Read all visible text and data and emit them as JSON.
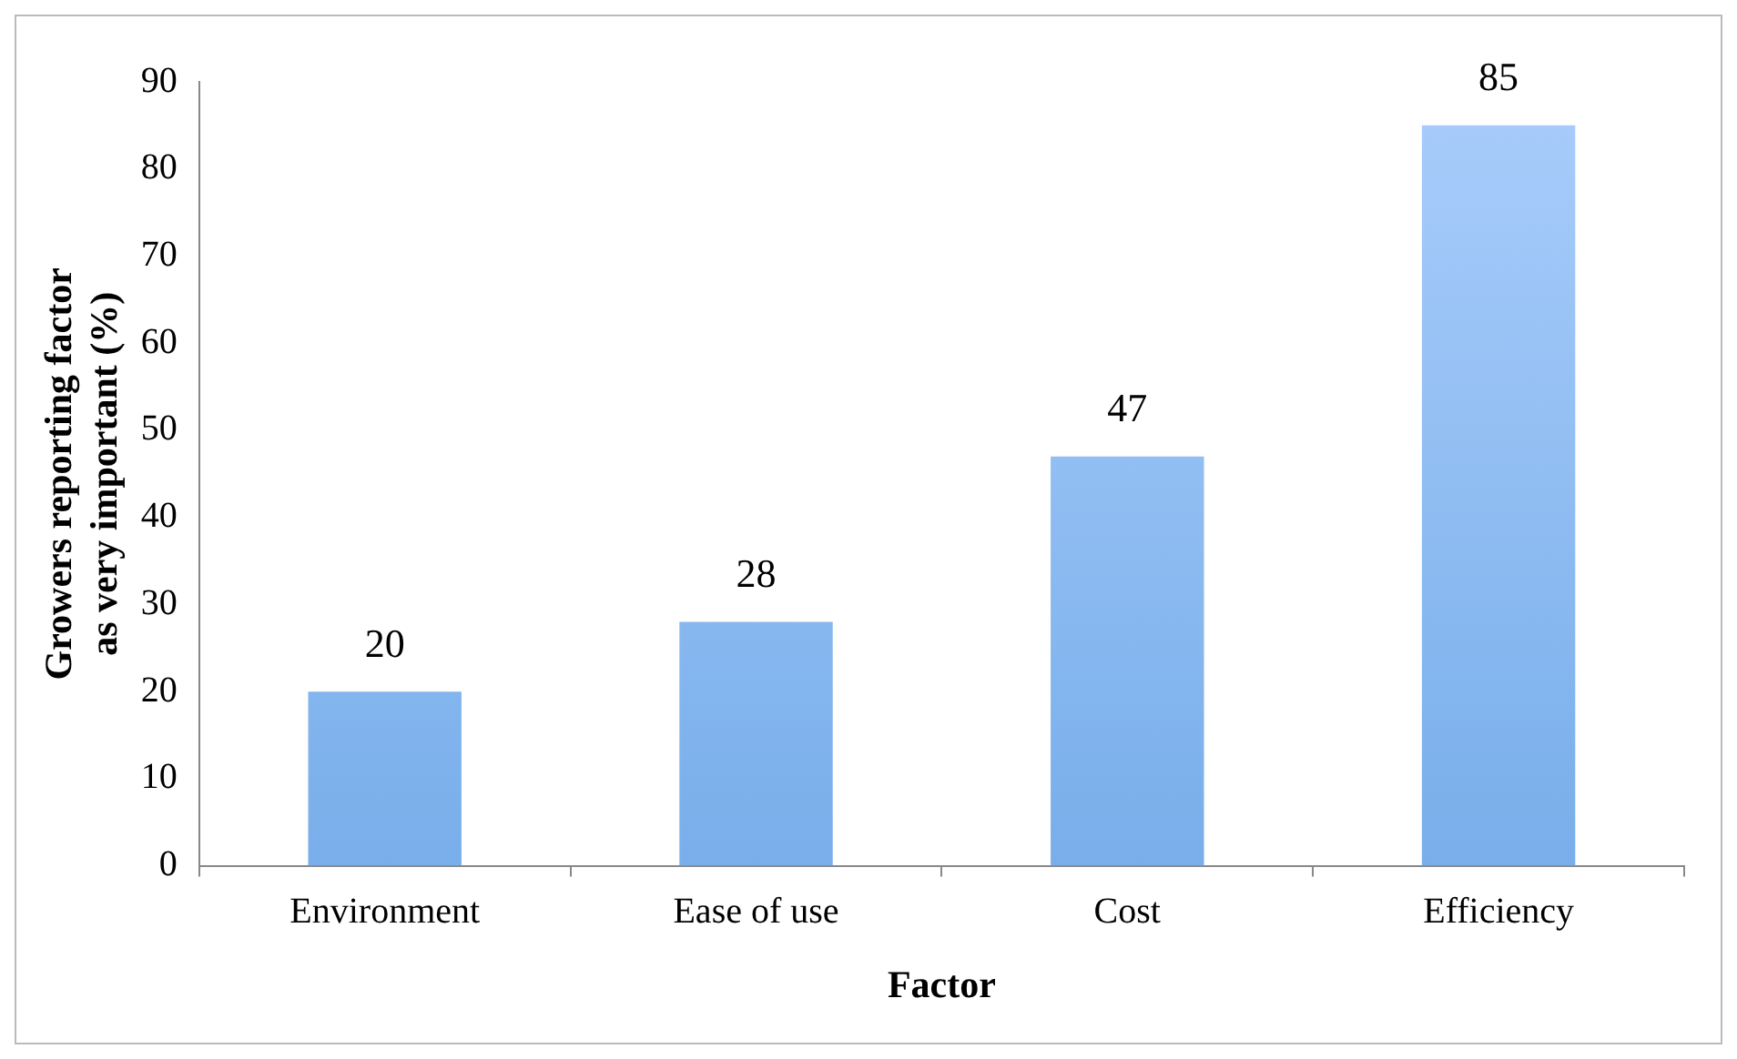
{
  "chart_data": {
    "type": "bar",
    "xlabel": "Factor",
    "ylabel": "Growers reporting factor as very important (%)",
    "categories": [
      "Environment",
      "Ease of use",
      "Cost",
      "Efficiency"
    ],
    "values": [
      20,
      28,
      47,
      85
    ],
    "color": "#78aeea",
    "ylim": [
      0,
      90
    ],
    "yticks": [
      0,
      10,
      20,
      30,
      40,
      50,
      60,
      70,
      80,
      90
    ],
    "data_labels": true
  }
}
